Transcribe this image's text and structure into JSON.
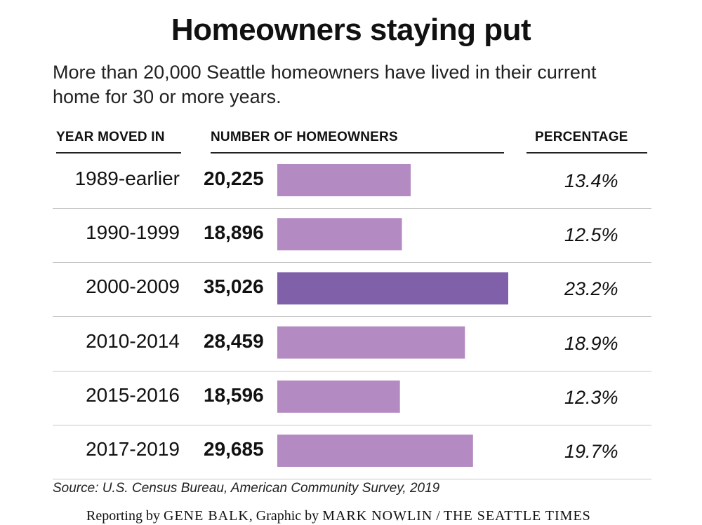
{
  "title": "Homeowners staying put",
  "subtitle": "More than 20,000 Seattle homeowners have lived in their current home for 30 or more years.",
  "headers": {
    "year": "YEAR MOVED IN",
    "number": "NUMBER OF HOMEOWNERS",
    "percentage": "PERCENTAGE"
  },
  "colors": {
    "bar": "#b48ac3",
    "bar_highlight": "#8061a9"
  },
  "chart_data": {
    "type": "bar",
    "orientation": "horizontal",
    "categories": [
      "1989-earlier",
      "1990-1999",
      "2000-2009",
      "2010-2014",
      "2015-2016",
      "2017-2019"
    ],
    "values": [
      20225,
      18896,
      35026,
      28459,
      18596,
      29685
    ],
    "value_labels": [
      "20,225",
      "18,896",
      "35,026",
      "28,459",
      "18,596",
      "29,685"
    ],
    "percentages": [
      "13.4%",
      "12.5%",
      "23.2%",
      "18.9%",
      "12.3%",
      "19.7%"
    ],
    "highlight_index": 2,
    "xlim": [
      0,
      35026
    ],
    "grid": false,
    "legend": "none"
  },
  "source": "Source: U.S. Census Bureau, American Community Survey, 2019",
  "credit": {
    "reporting_label": "Reporting by",
    "reporter": "GENE BALK",
    "graphic_label": ", Graphic by",
    "artist": "MARK NOWLIN",
    "separator": "/",
    "outlet": "THE SEATTLE TIMES"
  }
}
